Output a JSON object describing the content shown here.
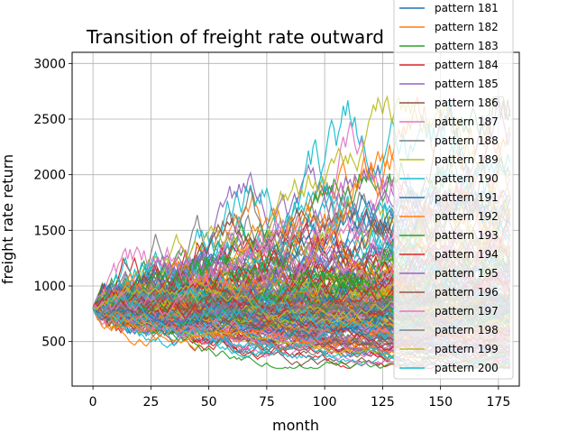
{
  "chart_data": {
    "type": "line",
    "title": "Transition of freight rate outward",
    "xlabel": "month",
    "ylabel": "freight rate return",
    "xlim": [
      -9,
      184
    ],
    "ylim": [
      100,
      3100
    ],
    "xticks": [
      0,
      25,
      50,
      75,
      100,
      125,
      150,
      175
    ],
    "yticks": [
      500,
      1000,
      1500,
      2000,
      2500,
      3000
    ],
    "grid": true,
    "legend_placement": "top-right",
    "start_value": 800,
    "months": 181,
    "series_count": 200,
    "colors": [
      "#1f77b4",
      "#ff7f0e",
      "#2ca02c",
      "#d62728",
      "#9467bd",
      "#8c564b",
      "#e377c2",
      "#7f7f7f",
      "#bcbd22",
      "#17becf"
    ],
    "legend_entries": [
      "pattern 181",
      "pattern 182",
      "pattern 183",
      "pattern 184",
      "pattern 185",
      "pattern 186",
      "pattern 187",
      "pattern 188",
      "pattern 189",
      "pattern 190",
      "pattern 191",
      "pattern 192",
      "pattern 193",
      "pattern 194",
      "pattern 195",
      "pattern 196",
      "pattern 197",
      "pattern 198",
      "pattern 199",
      "pattern 200"
    ]
  }
}
